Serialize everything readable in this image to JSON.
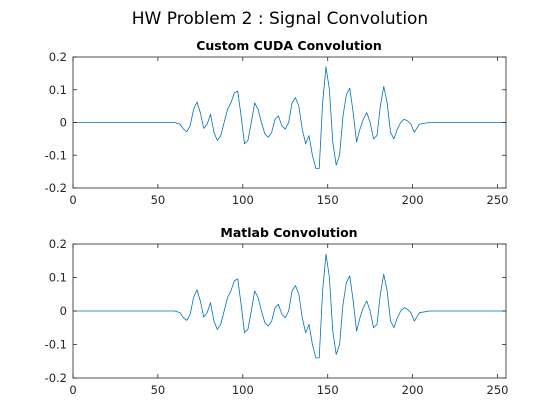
{
  "figure_title": "HW Problem 2 : Signal Convolution",
  "colors": {
    "line": "#0072BD",
    "axis": "#262626"
  },
  "chart_data": [
    {
      "type": "line",
      "title": "Custom CUDA Convolution",
      "xlabel": "",
      "ylabel": "",
      "xlim": [
        0,
        255
      ],
      "ylim": [
        -0.2,
        0.2
      ],
      "xticks": [
        0,
        50,
        100,
        150,
        200,
        250
      ],
      "xtick_labels": [
        "0",
        "50",
        "100",
        "150",
        "200",
        "250"
      ],
      "yticks": [
        -0.2,
        -0.1,
        0,
        0.1,
        0.2
      ],
      "ytick_labels": [
        "-0.2",
        "-0.1",
        "0",
        "0.1",
        "0.2"
      ],
      "grid": false,
      "series": [
        {
          "x": [
            0,
            60,
            63,
            65,
            67,
            69,
            71,
            73,
            75,
            77,
            79,
            81,
            83,
            85,
            87,
            89,
            91,
            93,
            95,
            97,
            99,
            101,
            103,
            105,
            107,
            109,
            111,
            113,
            115,
            117,
            119,
            121,
            123,
            125,
            127,
            129,
            131,
            133,
            135,
            137,
            139,
            141,
            143,
            145,
            147,
            149,
            151,
            153,
            155,
            157,
            159,
            161,
            163,
            165,
            167,
            169,
            171,
            173,
            175,
            177,
            179,
            181,
            183,
            185,
            187,
            189,
            191,
            193,
            195,
            197,
            199,
            201,
            204,
            210,
            255
          ],
          "y": [
            0,
            0,
            -0.005,
            -0.02,
            -0.028,
            -0.01,
            0.04,
            0.063,
            0.03,
            -0.018,
            -0.005,
            0.025,
            -0.03,
            -0.055,
            -0.04,
            0.0,
            0.04,
            0.06,
            0.09,
            0.096,
            0.02,
            -0.065,
            -0.055,
            0.0,
            0.06,
            0.04,
            0.0,
            -0.035,
            -0.045,
            -0.03,
            0.01,
            0.02,
            -0.01,
            -0.02,
            0.0,
            0.06,
            0.076,
            0.05,
            -0.02,
            -0.065,
            -0.04,
            -0.1,
            -0.14,
            -0.14,
            0.06,
            0.17,
            0.1,
            -0.06,
            -0.13,
            -0.1,
            0.02,
            0.085,
            0.105,
            0.03,
            -0.06,
            -0.02,
            0.01,
            0.03,
            0.0,
            -0.05,
            -0.04,
            0.05,
            0.11,
            0.06,
            -0.03,
            -0.05,
            -0.02,
            0.0,
            0.01,
            0.005,
            -0.005,
            -0.03,
            -0.005,
            0,
            0
          ]
        }
      ]
    },
    {
      "type": "line",
      "title": "Matlab Convolution",
      "xlabel": "",
      "ylabel": "",
      "xlim": [
        0,
        255
      ],
      "ylim": [
        -0.2,
        0.2
      ],
      "xticks": [
        0,
        50,
        100,
        150,
        200,
        250
      ],
      "xtick_labels": [
        "0",
        "50",
        "100",
        "150",
        "200",
        "250"
      ],
      "yticks": [
        -0.2,
        -0.1,
        0,
        0.1,
        0.2
      ],
      "ytick_labels": [
        "-0.2",
        "-0.1",
        "0",
        "0.1",
        "0.2"
      ],
      "grid": false,
      "series": [
        {
          "x": [
            0,
            60,
            63,
            65,
            67,
            69,
            71,
            73,
            75,
            77,
            79,
            81,
            83,
            85,
            87,
            89,
            91,
            93,
            95,
            97,
            99,
            101,
            103,
            105,
            107,
            109,
            111,
            113,
            115,
            117,
            119,
            121,
            123,
            125,
            127,
            129,
            131,
            133,
            135,
            137,
            139,
            141,
            143,
            145,
            147,
            149,
            151,
            153,
            155,
            157,
            159,
            161,
            163,
            165,
            167,
            169,
            171,
            173,
            175,
            177,
            179,
            181,
            183,
            185,
            187,
            189,
            191,
            193,
            195,
            197,
            199,
            201,
            204,
            210,
            255
          ],
          "y": [
            0,
            0,
            -0.005,
            -0.02,
            -0.028,
            -0.01,
            0.04,
            0.063,
            0.03,
            -0.018,
            -0.005,
            0.025,
            -0.03,
            -0.055,
            -0.04,
            0.0,
            0.04,
            0.06,
            0.09,
            0.096,
            0.02,
            -0.065,
            -0.055,
            0.0,
            0.06,
            0.04,
            0.0,
            -0.035,
            -0.045,
            -0.03,
            0.01,
            0.02,
            -0.01,
            -0.02,
            0.0,
            0.06,
            0.076,
            0.05,
            -0.02,
            -0.065,
            -0.04,
            -0.1,
            -0.14,
            -0.14,
            0.06,
            0.17,
            0.1,
            -0.06,
            -0.13,
            -0.1,
            0.02,
            0.085,
            0.105,
            0.03,
            -0.06,
            -0.02,
            0.01,
            0.03,
            0.0,
            -0.05,
            -0.04,
            0.05,
            0.11,
            0.06,
            -0.03,
            -0.05,
            -0.02,
            0.0,
            0.01,
            0.005,
            -0.005,
            -0.03,
            -0.005,
            0,
            0
          ]
        }
      ]
    }
  ]
}
